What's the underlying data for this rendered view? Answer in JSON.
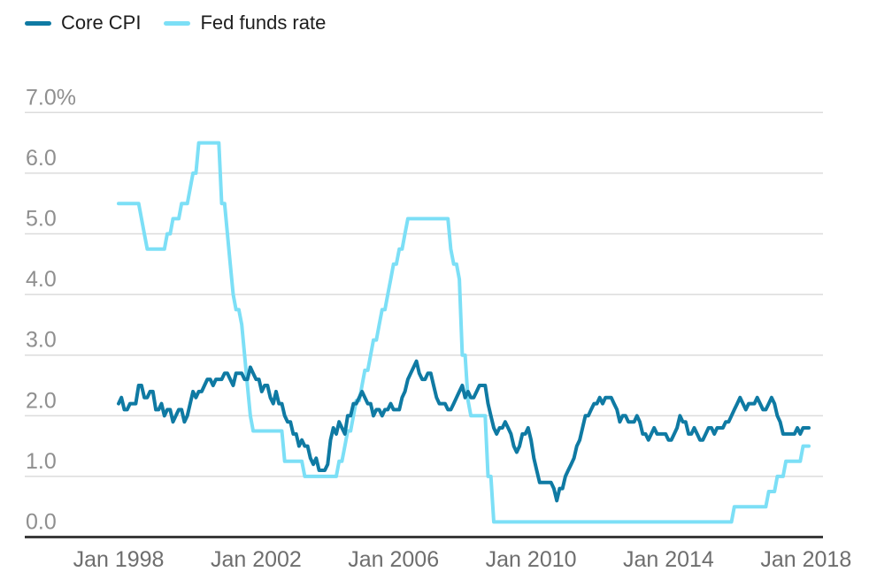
{
  "legend": {
    "items": [
      {
        "label": "Core CPI",
        "color": "#0f7aa3"
      },
      {
        "label": "Fed funds rate",
        "color": "#7cdff6"
      }
    ]
  },
  "chart_data": {
    "type": "line",
    "title": "",
    "xlabel": "",
    "ylabel": "",
    "x_unit": "month",
    "x_start": "Jan 1998",
    "x_end": "Feb 2018",
    "ylim": [
      0,
      7
    ],
    "grid": "horizontal",
    "legend_position": "top-left",
    "colors": {
      "background": "#ffffff",
      "grid": "#dcdcdc",
      "axis": "#3b3b3b",
      "ytick_text": "#8f8f8f",
      "xtick_text": "#6e6e6e",
      "legend_text": "#1d1d1d"
    },
    "yticks": [
      {
        "value": 0,
        "label": "0.0"
      },
      {
        "value": 1,
        "label": "1.0"
      },
      {
        "value": 2,
        "label": "2.0"
      },
      {
        "value": 3,
        "label": "3.0"
      },
      {
        "value": 4,
        "label": "4.0"
      },
      {
        "value": 5,
        "label": "5.0"
      },
      {
        "value": 6,
        "label": "6.0"
      },
      {
        "value": 7,
        "label": "7.0%"
      }
    ],
    "xticks": [
      {
        "month": 0,
        "label": "Jan 1998"
      },
      {
        "month": 48,
        "label": "Jan 2002"
      },
      {
        "month": 96,
        "label": "Jan 2006"
      },
      {
        "month": 144,
        "label": "Jan 2010"
      },
      {
        "month": 192,
        "label": "Jan 2014"
      },
      {
        "month": 240,
        "label": "Jan 2018"
      }
    ],
    "series": [
      {
        "name": "Core CPI",
        "color": "#0f7aa3",
        "values": [
          2.2,
          2.3,
          2.1,
          2.1,
          2.2,
          2.2,
          2.2,
          2.5,
          2.5,
          2.3,
          2.3,
          2.4,
          2.4,
          2.1,
          2.1,
          2.2,
          2.0,
          2.1,
          2.1,
          1.9,
          2.0,
          2.1,
          2.1,
          1.9,
          2.0,
          2.2,
          2.4,
          2.3,
          2.4,
          2.4,
          2.5,
          2.6,
          2.6,
          2.5,
          2.6,
          2.6,
          2.6,
          2.7,
          2.7,
          2.6,
          2.5,
          2.7,
          2.7,
          2.7,
          2.6,
          2.6,
          2.8,
          2.7,
          2.6,
          2.6,
          2.4,
          2.5,
          2.5,
          2.3,
          2.2,
          2.4,
          2.2,
          2.2,
          2.0,
          1.9,
          1.9,
          1.7,
          1.7,
          1.5,
          1.6,
          1.5,
          1.5,
          1.3,
          1.2,
          1.3,
          1.1,
          1.1,
          1.1,
          1.2,
          1.6,
          1.8,
          1.7,
          1.9,
          1.8,
          1.7,
          2.0,
          2.0,
          2.2,
          2.2,
          2.3,
          2.4,
          2.3,
          2.2,
          2.2,
          2.0,
          2.1,
          2.1,
          2.0,
          2.1,
          2.1,
          2.2,
          2.1,
          2.1,
          2.1,
          2.3,
          2.4,
          2.6,
          2.7,
          2.8,
          2.9,
          2.7,
          2.6,
          2.6,
          2.7,
          2.7,
          2.5,
          2.3,
          2.2,
          2.2,
          2.2,
          2.1,
          2.1,
          2.2,
          2.3,
          2.4,
          2.5,
          2.3,
          2.4,
          2.3,
          2.3,
          2.4,
          2.5,
          2.5,
          2.5,
          2.2,
          2.0,
          1.8,
          1.7,
          1.8,
          1.8,
          1.9,
          1.8,
          1.7,
          1.5,
          1.4,
          1.5,
          1.7,
          1.7,
          1.8,
          1.6,
          1.3,
          1.1,
          0.9,
          0.9,
          0.9,
          0.9,
          0.9,
          0.8,
          0.6,
          0.8,
          0.8,
          1.0,
          1.1,
          1.2,
          1.3,
          1.5,
          1.6,
          1.8,
          2.0,
          2.0,
          2.1,
          2.2,
          2.2,
          2.3,
          2.2,
          2.3,
          2.3,
          2.3,
          2.2,
          2.1,
          1.9,
          2.0,
          2.0,
          1.9,
          1.9,
          1.9,
          2.0,
          1.9,
          1.7,
          1.7,
          1.6,
          1.7,
          1.8,
          1.7,
          1.7,
          1.7,
          1.7,
          1.6,
          1.6,
          1.7,
          1.8,
          2.0,
          1.9,
          1.9,
          1.7,
          1.7,
          1.8,
          1.7,
          1.6,
          1.6,
          1.7,
          1.8,
          1.8,
          1.7,
          1.8,
          1.8,
          1.8,
          1.9,
          1.9,
          2.0,
          2.1,
          2.2,
          2.3,
          2.2,
          2.1,
          2.2,
          2.2,
          2.2,
          2.3,
          2.2,
          2.1,
          2.1,
          2.2,
          2.3,
          2.2,
          2.0,
          1.9,
          1.7,
          1.7,
          1.7,
          1.7,
          1.7,
          1.8,
          1.7,
          1.8,
          1.8,
          1.8
        ]
      },
      {
        "name": "Fed funds rate",
        "color": "#7cdff6",
        "values": [
          5.5,
          5.5,
          5.5,
          5.5,
          5.5,
          5.5,
          5.5,
          5.5,
          5.25,
          5.0,
          4.75,
          4.75,
          4.75,
          4.75,
          4.75,
          4.75,
          4.75,
          5.0,
          5.0,
          5.25,
          5.25,
          5.25,
          5.5,
          5.5,
          5.5,
          5.75,
          6.0,
          6.0,
          6.5,
          6.5,
          6.5,
          6.5,
          6.5,
          6.5,
          6.5,
          6.5,
          5.5,
          5.5,
          5.0,
          4.5,
          4.0,
          3.75,
          3.75,
          3.5,
          3.0,
          2.5,
          2.0,
          1.75,
          1.75,
          1.75,
          1.75,
          1.75,
          1.75,
          1.75,
          1.75,
          1.75,
          1.75,
          1.75,
          1.25,
          1.25,
          1.25,
          1.25,
          1.25,
          1.25,
          1.25,
          1.0,
          1.0,
          1.0,
          1.0,
          1.0,
          1.0,
          1.0,
          1.0,
          1.0,
          1.0,
          1.0,
          1.0,
          1.25,
          1.25,
          1.5,
          1.75,
          1.75,
          2.0,
          2.25,
          2.25,
          2.5,
          2.75,
          2.75,
          3.0,
          3.25,
          3.25,
          3.5,
          3.75,
          3.75,
          4.0,
          4.25,
          4.5,
          4.5,
          4.75,
          4.75,
          5.0,
          5.25,
          5.25,
          5.25,
          5.25,
          5.25,
          5.25,
          5.25,
          5.25,
          5.25,
          5.25,
          5.25,
          5.25,
          5.25,
          5.25,
          5.25,
          4.75,
          4.5,
          4.5,
          4.25,
          3.0,
          3.0,
          2.25,
          2.0,
          2.0,
          2.0,
          2.0,
          2.0,
          2.0,
          1.0,
          1.0,
          0.25,
          0.25,
          0.25,
          0.25,
          0.25,
          0.25,
          0.25,
          0.25,
          0.25,
          0.25,
          0.25,
          0.25,
          0.25,
          0.25,
          0.25,
          0.25,
          0.25,
          0.25,
          0.25,
          0.25,
          0.25,
          0.25,
          0.25,
          0.25,
          0.25,
          0.25,
          0.25,
          0.25,
          0.25,
          0.25,
          0.25,
          0.25,
          0.25,
          0.25,
          0.25,
          0.25,
          0.25,
          0.25,
          0.25,
          0.25,
          0.25,
          0.25,
          0.25,
          0.25,
          0.25,
          0.25,
          0.25,
          0.25,
          0.25,
          0.25,
          0.25,
          0.25,
          0.25,
          0.25,
          0.25,
          0.25,
          0.25,
          0.25,
          0.25,
          0.25,
          0.25,
          0.25,
          0.25,
          0.25,
          0.25,
          0.25,
          0.25,
          0.25,
          0.25,
          0.25,
          0.25,
          0.25,
          0.25,
          0.25,
          0.25,
          0.25,
          0.25,
          0.25,
          0.25,
          0.25,
          0.25,
          0.25,
          0.25,
          0.25,
          0.5,
          0.5,
          0.5,
          0.5,
          0.5,
          0.5,
          0.5,
          0.5,
          0.5,
          0.5,
          0.5,
          0.5,
          0.75,
          0.75,
          0.75,
          1.0,
          1.0,
          1.0,
          1.25,
          1.25,
          1.25,
          1.25,
          1.25,
          1.25,
          1.5,
          1.5,
          1.5
        ]
      }
    ]
  }
}
